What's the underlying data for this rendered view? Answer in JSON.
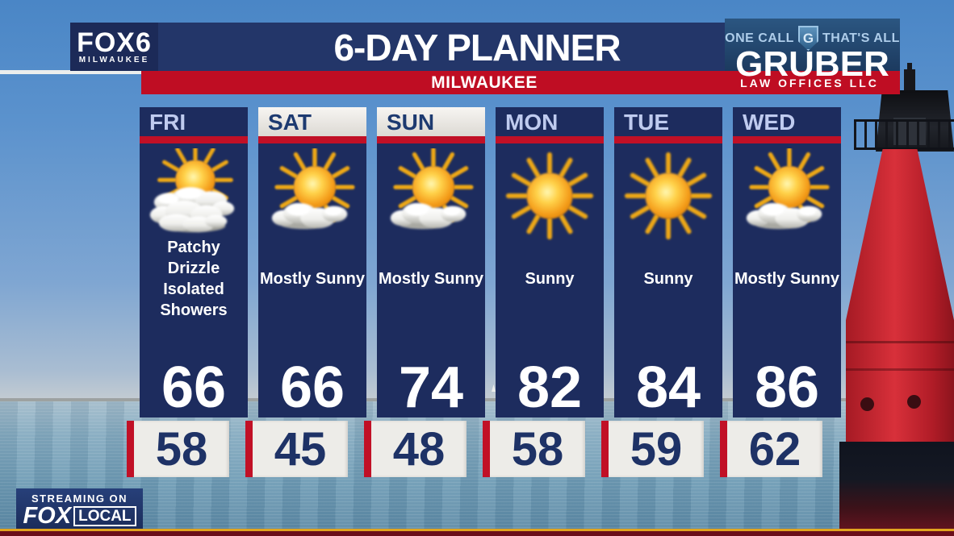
{
  "header": {
    "station": {
      "name": "FOX6",
      "city": "MILWAUKEE"
    },
    "title": "6-DAY PLANNER",
    "subtitle": "MILWAUKEE",
    "sponsor": {
      "tagline_left": "ONE CALL",
      "monogram": "G",
      "tagline_right": "THAT'S ALL",
      "name": "GRUBER",
      "subname": "LAW OFFICES LLC"
    }
  },
  "forecast": {
    "days": [
      {
        "label": "FRI",
        "header_style": "navy",
        "icon": "sun-behind-clouds-icon",
        "condition": "Patchy Drizzle Isolated Showers",
        "condition_lines": [
          "Patchy Drizzle",
          "Isolated",
          "Showers"
        ],
        "high": "66",
        "low": "58"
      },
      {
        "label": "SAT",
        "header_style": "white",
        "icon": "mostly-sunny-icon",
        "condition": "Mostly Sunny",
        "condition_lines": [
          "Mostly Sunny"
        ],
        "high": "66",
        "low": "45"
      },
      {
        "label": "SUN",
        "header_style": "white",
        "icon": "mostly-sunny-icon",
        "condition": "Mostly Sunny",
        "condition_lines": [
          "Mostly Sunny"
        ],
        "high": "74",
        "low": "48"
      },
      {
        "label": "MON",
        "header_style": "navy",
        "icon": "sunny-icon",
        "condition": "Sunny",
        "condition_lines": [
          "Sunny"
        ],
        "high": "82",
        "low": "58"
      },
      {
        "label": "TUE",
        "header_style": "navy",
        "icon": "sunny-icon",
        "condition": "Sunny",
        "condition_lines": [
          "Sunny"
        ],
        "high": "84",
        "low": "59"
      },
      {
        "label": "WED",
        "header_style": "navy",
        "icon": "mostly-sunny-icon",
        "condition": "Mostly Sunny",
        "condition_lines": [
          "Mostly Sunny"
        ],
        "high": "86",
        "low": "62"
      }
    ],
    "high_unit": "F",
    "low_unit": "F"
  },
  "footer": {
    "streaming_label": "STREAMING ON",
    "brand": "FOX",
    "brand_suffix": "LOCAL"
  },
  "colors": {
    "panel_navy": "#1d2c5e",
    "band_navy": "#233669",
    "accent_red": "#c11026",
    "band_red": "#bf0d23",
    "day_label_light": "#bfcbef",
    "low_box_white": "#edece8",
    "low_text_navy": "#1e3266",
    "sponsor_blue": "#1c3a5f",
    "strip_gold": "#e2a51f",
    "strip_maroon": "#6b0e1a"
  }
}
